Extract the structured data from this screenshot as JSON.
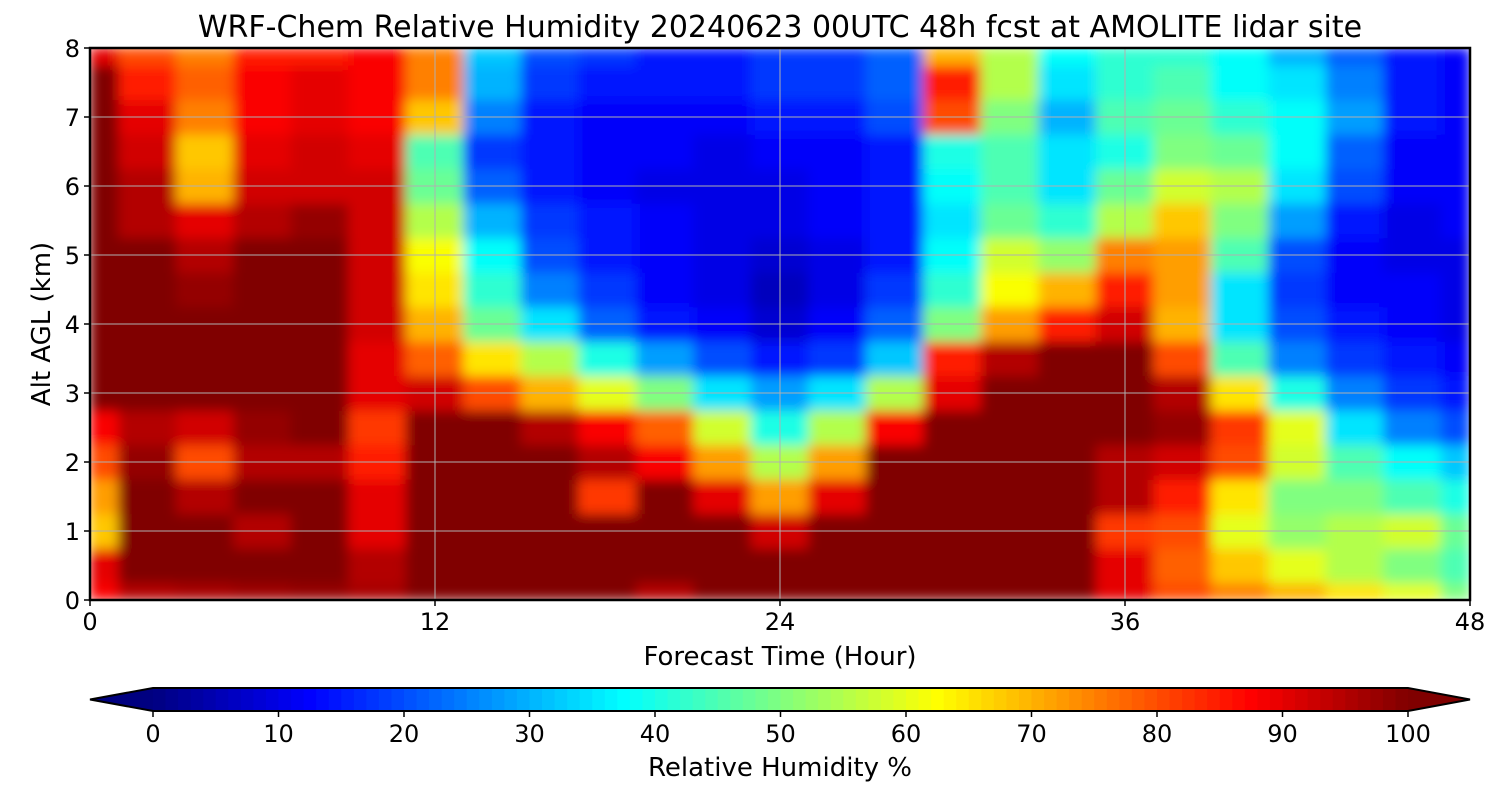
{
  "chart_data": {
    "type": "heatmap",
    "title": "WRF-Chem Relative Humidity 20240623 00UTC 48h fcst at AMOLITE lidar site",
    "xlabel": "Forecast Time (Hour)",
    "ylabel": "Alt AGL (km)",
    "xlim": [
      0,
      48
    ],
    "ylim": [
      0,
      8
    ],
    "xticks": [
      "0",
      "12",
      "24",
      "36",
      "48"
    ],
    "yticks": [
      "0",
      "1",
      "2",
      "3",
      "4",
      "5",
      "6",
      "7",
      "8"
    ],
    "grid": true,
    "colormap": "jet",
    "color_range": [
      0,
      100
    ],
    "colorbar": {
      "label": "Relative Humidity %",
      "ticks": [
        "0",
        "10",
        "20",
        "30",
        "40",
        "50",
        "60",
        "70",
        "80",
        "90",
        "100"
      ],
      "extend": "both"
    },
    "x": [
      0,
      2,
      4,
      6,
      8,
      10,
      12,
      14,
      16,
      18,
      20,
      22,
      24,
      26,
      28,
      30,
      32,
      34,
      36,
      38,
      40,
      42,
      44,
      46,
      48
    ],
    "y": [
      0,
      0.5,
      1,
      1.5,
      2,
      2.5,
      3,
      3.5,
      4,
      4.5,
      5,
      5.5,
      6,
      6.5,
      7,
      7.5,
      8
    ],
    "z": [
      [
        88,
        95,
        96,
        97,
        98,
        96,
        100,
        100,
        100,
        100,
        95,
        100,
        100,
        100,
        100,
        100,
        100,
        100,
        90,
        80,
        75,
        70,
        65,
        60,
        50
      ],
      [
        90,
        100,
        100,
        100,
        100,
        95,
        100,
        100,
        100,
        100,
        100,
        100,
        100,
        100,
        100,
        100,
        100,
        100,
        90,
        78,
        68,
        60,
        55,
        50,
        45
      ],
      [
        68,
        100,
        100,
        95,
        100,
        90,
        100,
        100,
        100,
        100,
        100,
        100,
        92,
        100,
        100,
        100,
        100,
        100,
        82,
        80,
        60,
        52,
        55,
        58,
        48
      ],
      [
        72,
        100,
        95,
        100,
        100,
        90,
        100,
        100,
        100,
        82,
        100,
        90,
        72,
        90,
        100,
        100,
        100,
        100,
        95,
        85,
        65,
        50,
        50,
        45,
        40
      ],
      [
        80,
        98,
        80,
        95,
        95,
        85,
        100,
        100,
        100,
        95,
        88,
        72,
        55,
        72,
        100,
        100,
        100,
        100,
        95,
        92,
        80,
        58,
        45,
        38,
        32
      ],
      [
        88,
        95,
        92,
        98,
        100,
        82,
        100,
        100,
        95,
        88,
        78,
        58,
        40,
        55,
        88,
        100,
        100,
        100,
        100,
        98,
        82,
        60,
        35,
        25,
        20
      ],
      [
        100,
        100,
        100,
        100,
        100,
        90,
        92,
        80,
        70,
        60,
        50,
        35,
        28,
        35,
        55,
        90,
        100,
        100,
        100,
        95,
        65,
        40,
        25,
        18,
        15
      ],
      [
        100,
        100,
        100,
        100,
        100,
        90,
        78,
        65,
        55,
        40,
        28,
        20,
        15,
        18,
        32,
        85,
        95,
        100,
        100,
        80,
        45,
        25,
        18,
        15,
        12
      ],
      [
        100,
        100,
        100,
        100,
        100,
        92,
        70,
        48,
        35,
        22,
        15,
        12,
        8,
        12,
        22,
        50,
        72,
        85,
        92,
        70,
        35,
        20,
        15,
        12,
        10
      ],
      [
        100,
        100,
        98,
        100,
        100,
        92,
        65,
        42,
        25,
        18,
        12,
        10,
        6,
        10,
        18,
        42,
        62,
        70,
        85,
        72,
        35,
        18,
        12,
        12,
        10
      ],
      [
        100,
        100,
        95,
        100,
        100,
        92,
        62,
        38,
        20,
        15,
        12,
        10,
        8,
        10,
        15,
        38,
        58,
        52,
        75,
        72,
        45,
        20,
        12,
        10,
        10
      ],
      [
        100,
        95,
        90,
        95,
        98,
        92,
        55,
        30,
        18,
        15,
        12,
        10,
        10,
        12,
        15,
        35,
        48,
        42,
        55,
        68,
        50,
        28,
        15,
        10,
        12
      ],
      [
        100,
        95,
        70,
        92,
        92,
        92,
        48,
        22,
        15,
        12,
        10,
        10,
        10,
        12,
        15,
        38,
        45,
        35,
        48,
        58,
        55,
        35,
        20,
        12,
        12
      ],
      [
        100,
        92,
        68,
        90,
        92,
        90,
        45,
        18,
        15,
        12,
        12,
        10,
        12,
        12,
        15,
        40,
        45,
        35,
        40,
        50,
        48,
        38,
        22,
        12,
        12
      ],
      [
        100,
        90,
        75,
        88,
        90,
        88,
        68,
        25,
        15,
        12,
        12,
        12,
        15,
        15,
        20,
        80,
        50,
        30,
        45,
        48,
        42,
        38,
        28,
        15,
        12
      ],
      [
        100,
        85,
        78,
        88,
        90,
        88,
        75,
        30,
        18,
        15,
        15,
        15,
        18,
        18,
        22,
        85,
        55,
        35,
        42,
        45,
        38,
        35,
        25,
        15,
        12
      ],
      [
        90,
        80,
        75,
        85,
        85,
        88,
        75,
        32,
        20,
        18,
        15,
        15,
        18,
        18,
        22,
        70,
        55,
        38,
        42,
        42,
        38,
        30,
        22,
        15,
        12
      ]
    ]
  }
}
